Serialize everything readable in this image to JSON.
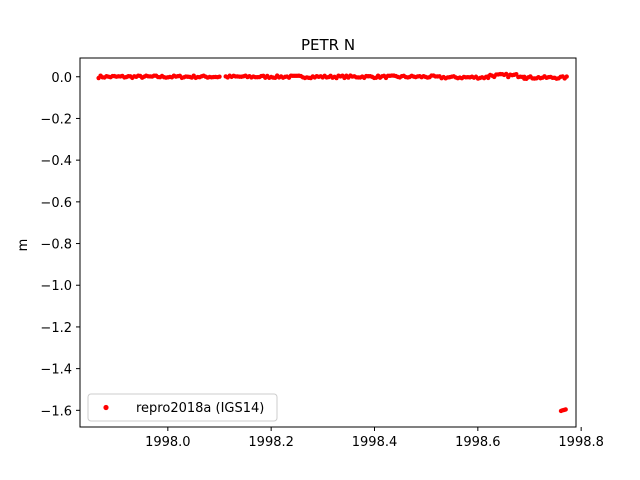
{
  "chart_data": {
    "type": "scatter",
    "title": "PETR N",
    "xlabel": "",
    "ylabel": "m",
    "xlim": [
      1997.83,
      1998.79
    ],
    "ylim": [
      -1.68,
      0.09
    ],
    "xticks": [
      1998.0,
      1998.2,
      1998.4,
      1998.6,
      1998.8
    ],
    "xtick_labels": [
      "1998.0",
      "1998.2",
      "1998.4",
      "1998.6",
      "1998.8"
    ],
    "yticks": [
      0.0,
      -0.2,
      -0.4,
      -0.6,
      -0.8,
      -1.0,
      -1.2,
      -1.4,
      -1.6
    ],
    "ytick_labels": [
      "0.0",
      "−0.2",
      "−0.4",
      "−0.6",
      "−0.8",
      "−1.0",
      "−1.2",
      "−1.4",
      "−1.6"
    ],
    "grid": false,
    "legend_position": "lower-left",
    "series": [
      {
        "name": "repro2018a (IGS14)",
        "color": "#ff0000",
        "marker": "dot",
        "segments": [
          {
            "x_start": 1997.866,
            "x_end": 1998.1,
            "y_base": 0.0,
            "y_jitter": 0.006
          },
          {
            "x_start": 1998.112,
            "x_end": 1998.518,
            "y_base": 0.0,
            "y_jitter": 0.006
          },
          {
            "x_start": 1998.522,
            "x_end": 1998.62,
            "y_base": -0.003,
            "y_jitter": 0.006
          },
          {
            "x_start": 1998.62,
            "x_end": 1998.69,
            "y_base": 0.006,
            "y_jitter": 0.008
          },
          {
            "x_start": 1998.69,
            "x_end": 1998.772,
            "y_base": -0.004,
            "y_jitter": 0.006
          }
        ],
        "outliers": [
          {
            "x": 1998.761,
            "y": -1.603
          },
          {
            "x": 1998.764,
            "y": -1.6
          },
          {
            "x": 1998.767,
            "y": -1.598
          },
          {
            "x": 1998.77,
            "y": -1.596
          }
        ]
      }
    ]
  }
}
